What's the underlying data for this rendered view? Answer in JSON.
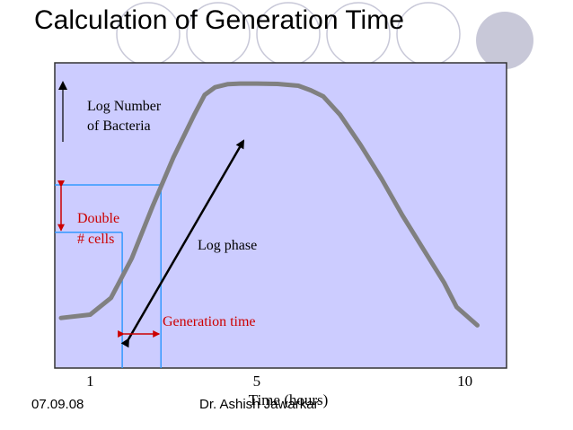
{
  "slide": {
    "title": "Calculation of Generation Time",
    "footer_date": "07.09.08",
    "footer_author": "Dr. Ashish Jawarkar"
  },
  "colors": {
    "panel": "#ccccff",
    "curve": "#808080",
    "guide": "#3399ff",
    "annotation": "#cc0000",
    "deco_circle": "#c8c8d8"
  },
  "chart_data": {
    "type": "line",
    "title": "",
    "xlabel": "Time (hours)",
    "ylabel": "Log Number of Bacteria",
    "xticks": [
      1,
      5,
      10
    ],
    "xlim": [
      0.15,
      11.0
    ],
    "ylim": [
      0,
      10
    ],
    "grid": false,
    "series": [
      {
        "x": [
          0.3,
          1.0,
          1.5,
          2.0,
          2.5,
          3.0,
          3.5,
          3.75,
          4.0,
          4.3,
          4.6,
          5.0,
          5.5,
          6.0,
          6.3,
          6.6,
          7.0,
          7.5,
          8.0,
          8.5,
          9.0,
          9.5,
          9.8,
          10.3
        ],
        "y": [
          1.64,
          1.75,
          2.3,
          3.6,
          5.3,
          6.9,
          8.3,
          8.95,
          9.2,
          9.3,
          9.32,
          9.32,
          9.31,
          9.25,
          9.1,
          8.9,
          8.3,
          7.3,
          6.2,
          5.0,
          3.9,
          2.8,
          2.0,
          1.4
        ]
      }
    ],
    "annotations": {
      "log_phase_label": "Log phase",
      "double_cells_line1": "Double",
      "double_cells_line2": "# cells",
      "generation_time_label": "Generation time",
      "ylabel_line1": "Log Number",
      "ylabel_line2": "of Bacteria",
      "guide_t1": 1.77,
      "guide_t2": 2.7,
      "guide_level1": 4.45,
      "guide_level2": 6.0
    }
  }
}
